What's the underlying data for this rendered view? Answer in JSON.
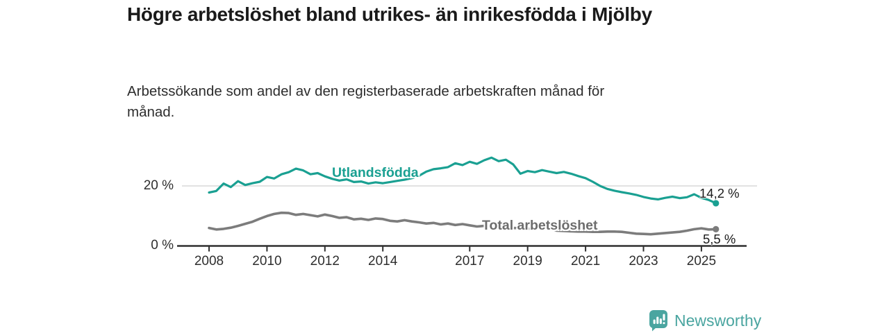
{
  "colors": {
    "accent": "#1aa092",
    "gray_line": "#7c7c7c",
    "gray_label": "#6d6d6d",
    "brand": "#4aa5a0",
    "axis": "#2f2f2f",
    "grid": "#d9d9d9",
    "title": "#1a1a1a",
    "text": "#2d2d2d"
  },
  "header": {
    "title": "Högre arbetslöshet bland utrikes- än inrikesfödda i Mjölby",
    "subtitle": "Arbetssökande som andel av den registerbaserade arbetskraften månad för månad."
  },
  "chart_data": {
    "type": "line",
    "title": "Högre arbetslöshet bland utrikes- än inrikesfödda i Mjölby",
    "subtitle": "Arbetssökande som andel av den registerbaserade arbetskraften månad för månad.",
    "unit": "%",
    "x_start": 2008.0,
    "x_step": 0.25,
    "x_end": 2025.5,
    "ylim": [
      0,
      32
    ],
    "grid": "y-20-only",
    "legend_position": "inline-labels",
    "yticks": [
      {
        "value": 0,
        "label": "0 %"
      },
      {
        "value": 20,
        "label": "20 %"
      }
    ],
    "gridlines": [
      20
    ],
    "xticks": [
      {
        "value": 2008,
        "label": "2008"
      },
      {
        "value": 2010,
        "label": "2010"
      },
      {
        "value": 2012,
        "label": "2012"
      },
      {
        "value": 2014,
        "label": "2014"
      },
      {
        "value": 2017,
        "label": "2017"
      },
      {
        "value": 2019,
        "label": "2019"
      },
      {
        "value": 2021,
        "label": "2021"
      },
      {
        "value": 2023,
        "label": "2023"
      },
      {
        "value": 2025,
        "label": "2025"
      }
    ],
    "series": [
      {
        "name": "Utlandsfödda",
        "color": "#1aa092",
        "end_label": "14,2 %",
        "end_value": 14.2,
        "values": [
          17.8,
          18.3,
          20.8,
          19.6,
          21.6,
          20.3,
          20.9,
          21.4,
          23.0,
          22.5,
          23.9,
          24.6,
          25.8,
          25.2,
          23.9,
          24.3,
          23.2,
          22.4,
          21.8,
          22.2,
          21.3,
          21.5,
          20.8,
          21.2,
          20.9,
          21.3,
          21.7,
          22.1,
          22.6,
          23.4,
          24.8,
          25.6,
          25.9,
          26.3,
          27.6,
          27.0,
          28.1,
          27.4,
          28.6,
          29.5,
          28.3,
          28.8,
          27.2,
          24.1,
          25.0,
          24.6,
          25.3,
          24.8,
          24.3,
          24.7,
          24.1,
          23.3,
          22.6,
          21.4,
          20.0,
          19.0,
          18.4,
          17.9,
          17.5,
          17.0,
          16.3,
          15.8,
          15.5,
          16.0,
          16.4,
          15.9,
          16.2,
          17.2,
          16.0,
          15.3,
          14.2
        ]
      },
      {
        "name": "Total arbetslöshet",
        "color": "#7c7c7c",
        "end_label": "5,5 %",
        "end_value": 5.5,
        "values": [
          5.9,
          5.4,
          5.6,
          6.0,
          6.6,
          7.3,
          8.0,
          9.0,
          9.9,
          10.6,
          11.0,
          10.9,
          10.3,
          10.6,
          10.2,
          9.8,
          10.4,
          9.9,
          9.3,
          9.5,
          8.8,
          9.0,
          8.6,
          9.1,
          8.9,
          8.3,
          8.1,
          8.5,
          8.1,
          7.8,
          7.4,
          7.6,
          7.1,
          7.4,
          6.9,
          7.2,
          6.8,
          6.4,
          6.6,
          6.3,
          6.1,
          6.0,
          5.9,
          5.8,
          5.7,
          5.6,
          5.8,
          5.9,
          5.0,
          4.9,
          4.8,
          4.7,
          4.7,
          4.6,
          4.6,
          4.7,
          4.7,
          4.6,
          4.3,
          4.0,
          3.9,
          3.8,
          4.0,
          4.2,
          4.4,
          4.6,
          5.0,
          5.5,
          5.8,
          5.4,
          5.5
        ]
      }
    ]
  },
  "footer": {
    "brand": "Newsworthy",
    "logo_icon": "bar-chart-speech-bubble-icon"
  }
}
